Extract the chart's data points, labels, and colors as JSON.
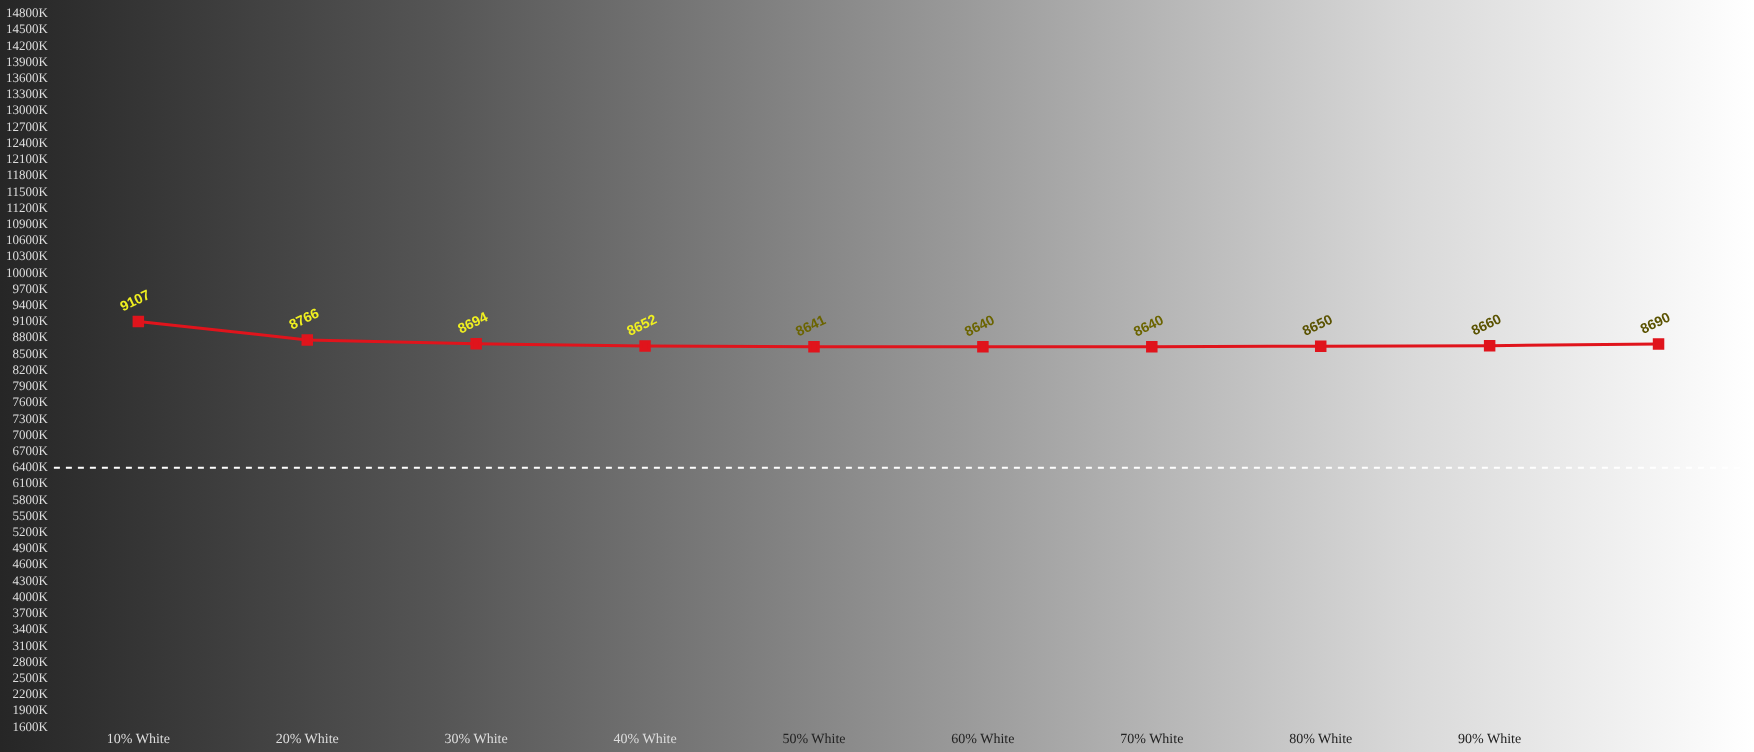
{
  "chart_data": {
    "type": "line",
    "categories": [
      "10% White",
      "20% White",
      "30% White",
      "40% White",
      "50% White",
      "60% White",
      "70% White",
      "80% White",
      "90% White",
      null
    ],
    "series": [
      {
        "color": "#e0141c",
        "values": [
          9107,
          8766,
          8694,
          8652,
          8641,
          8640,
          8640,
          8650,
          8660,
          8690
        ]
      }
    ],
    "ylim": [
      1600,
      14800
    ],
    "yticks": [
      {
        "value": 1600,
        "label": "1600K"
      },
      {
        "value": 1900,
        "label": "1900K"
      },
      {
        "value": 2200,
        "label": "2200K"
      },
      {
        "value": 2500,
        "label": "2500K"
      },
      {
        "value": 2800,
        "label": "2800K"
      },
      {
        "value": 3100,
        "label": "3100K"
      },
      {
        "value": 3400,
        "label": "3400K"
      },
      {
        "value": 3700,
        "label": "3700K"
      },
      {
        "value": 4000,
        "label": "4000K"
      },
      {
        "value": 4300,
        "label": "4300K"
      },
      {
        "value": 4600,
        "label": "4600K"
      },
      {
        "value": 4900,
        "label": "4900K"
      },
      {
        "value": 5200,
        "label": "5200K"
      },
      {
        "value": 5500,
        "label": "5500K"
      },
      {
        "value": 5800,
        "label": "5800K"
      },
      {
        "value": 6100,
        "label": "6100K"
      },
      {
        "value": 6400,
        "label": "6400K"
      },
      {
        "value": 6700,
        "label": "6700K"
      },
      {
        "value": 7000,
        "label": "7000K"
      },
      {
        "value": 7300,
        "label": "7300K"
      },
      {
        "value": 7600,
        "label": "7600K"
      },
      {
        "value": 7900,
        "label": "7900K"
      },
      {
        "value": 8200,
        "label": "8200K"
      },
      {
        "value": 8500,
        "label": "8500K"
      },
      {
        "value": 8800,
        "label": "8800K"
      },
      {
        "value": 9100,
        "label": "9100K"
      },
      {
        "value": 9400,
        "label": "9400K"
      },
      {
        "value": 9700,
        "label": "9700K"
      },
      {
        "value": 10000,
        "label": "10000K"
      },
      {
        "value": 10300,
        "label": "10300K"
      },
      {
        "value": 10600,
        "label": "10600K"
      },
      {
        "value": 10900,
        "label": "10900K"
      },
      {
        "value": 11200,
        "label": "11200K"
      },
      {
        "value": 11500,
        "label": "11500K"
      },
      {
        "value": 11800,
        "label": "11800K"
      },
      {
        "value": 12100,
        "label": "12100K"
      },
      {
        "value": 12400,
        "label": "12400K"
      },
      {
        "value": 12700,
        "label": "12700K"
      },
      {
        "value": 13000,
        "label": "13000K"
      },
      {
        "value": 13300,
        "label": "13300K"
      },
      {
        "value": 13600,
        "label": "13600K"
      },
      {
        "value": 13900,
        "label": "13900K"
      },
      {
        "value": 14200,
        "label": "14200K"
      },
      {
        "value": 14500,
        "label": "14500K"
      },
      {
        "value": 14800,
        "label": "14800K"
      }
    ],
    "ref_lines": [
      {
        "axis": "y",
        "value": 6400,
        "color": "#ffffff",
        "line_style": "dashed"
      }
    ],
    "data_labels": true,
    "marker": "square",
    "grid": false,
    "legend": false
  }
}
